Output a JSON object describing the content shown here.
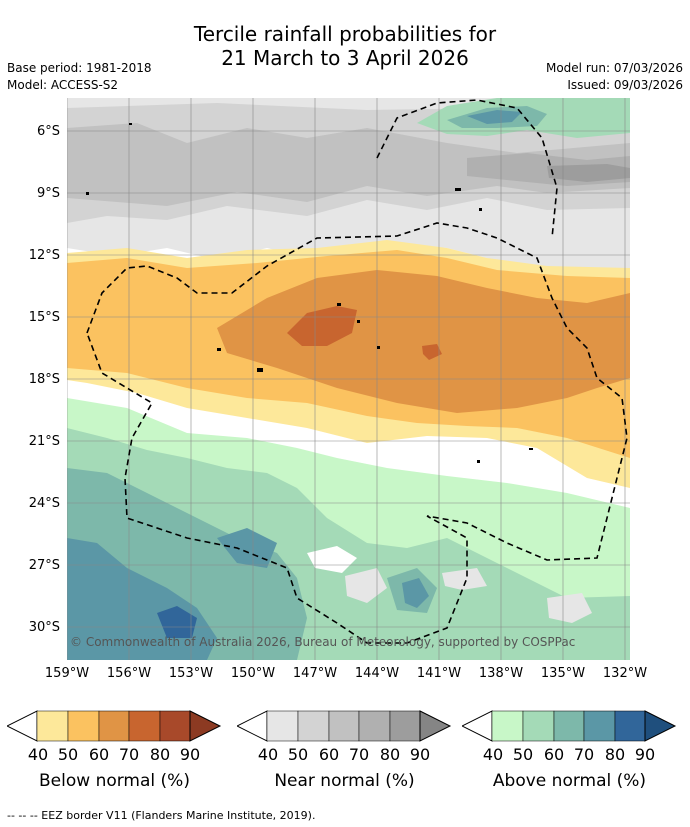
{
  "title": {
    "line1": "Tercile rainfall probabilities for",
    "line2": "21 March to 3 April 2026"
  },
  "meta": {
    "base_period": "Base period: 1981-2018",
    "model": "Model: ACCESS-S2",
    "model_run": "Model run: 07/03/2026",
    "issued": "Issued: 09/03/2026"
  },
  "map": {
    "lat_labels": [
      "6°S",
      "9°S",
      "12°S",
      "15°S",
      "18°S",
      "21°S",
      "24°S",
      "27°S",
      "30°S"
    ],
    "lon_labels": [
      "159°W",
      "156°W",
      "153°W",
      "150°W",
      "147°W",
      "144°W",
      "141°W",
      "138°W",
      "135°W",
      "132°W"
    ],
    "copyright": "© Commonwealth of Australia 2026, Bureau of Meteorology, supported by COSPPac"
  },
  "colorbars": [
    {
      "name": "below",
      "title": "Below normal (%)",
      "ticks": [
        "40",
        "50",
        "60",
        "70",
        "80",
        "90"
      ],
      "colors": [
        "#fde89a",
        "#fbc260",
        "#e09445",
        "#c8652f",
        "#a8492a",
        "#8c3a22"
      ]
    },
    {
      "name": "near",
      "title": "Near normal (%)",
      "ticks": [
        "40",
        "50",
        "60",
        "70",
        "80",
        "90"
      ],
      "colors": [
        "#e6e6e6",
        "#d3d3d3",
        "#c1c1c1",
        "#b0b0b0",
        "#9d9d9d",
        "#858585"
      ]
    },
    {
      "name": "above",
      "title": "Above normal (%)",
      "ticks": [
        "40",
        "50",
        "60",
        "70",
        "80",
        "90"
      ],
      "colors": [
        "#c8f7c8",
        "#a4dab7",
        "#7db8aa",
        "#5b97a6",
        "#31669a",
        "#1f4f7d"
      ]
    }
  ],
  "footer": "--  --  -- EEZ border V11 (Flanders Marine Institute, 2019)."
}
